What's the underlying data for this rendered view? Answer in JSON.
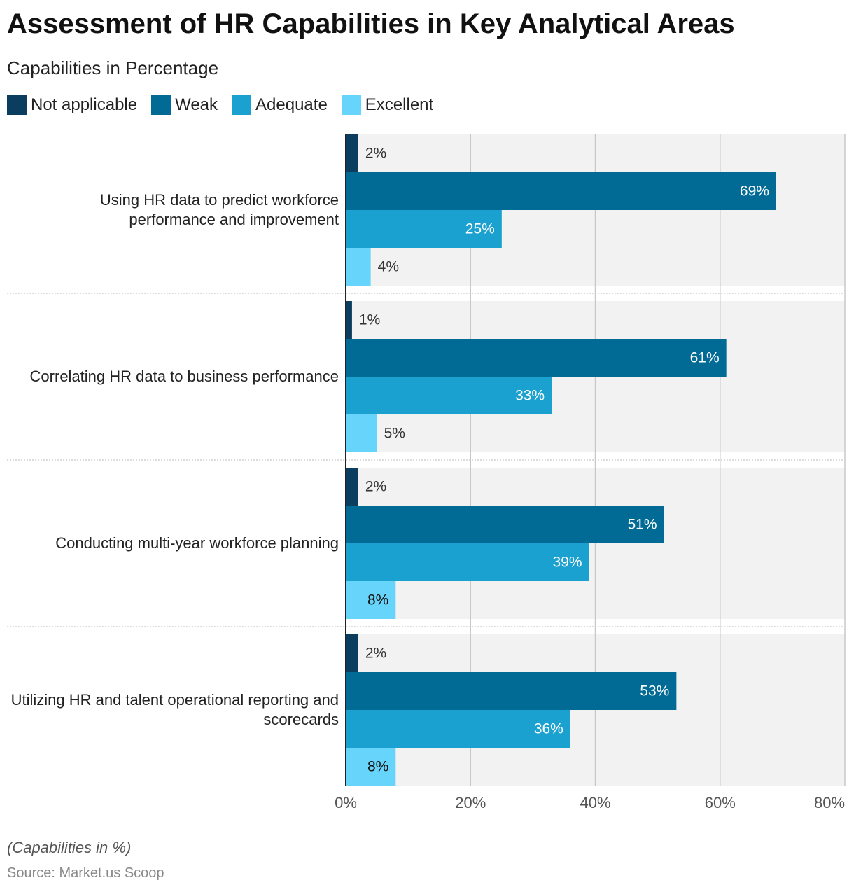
{
  "chart_data": {
    "type": "hbar",
    "title": "Assessment of HR Capabilities in Key Analytical Areas",
    "subtitle": "Capabilities in Percentage",
    "note": "(Capabilities in %)",
    "source": "Source: Market.us Scoop",
    "categories": [
      "Using HR data to predict workforce performance and improvement",
      "Correlating HR data to business performance",
      "Conducting multi-year workforce planning",
      "Utilizing HR and talent operational reporting and scorecards"
    ],
    "series": [
      {
        "name": "Not applicable",
        "color": "#0b3d5e",
        "values": [
          2,
          1,
          2,
          2
        ],
        "value_labels": [
          "2%",
          "1%",
          "2%",
          "2%"
        ]
      },
      {
        "name": "Weak",
        "color": "#016b96",
        "values": [
          69,
          61,
          51,
          53
        ],
        "value_labels": [
          "69%",
          "61%",
          "51%",
          "53%"
        ]
      },
      {
        "name": "Adequate",
        "color": "#1ba1cf",
        "values": [
          25,
          33,
          39,
          36
        ],
        "value_labels": [
          "25%",
          "33%",
          "39%",
          "36%"
        ]
      },
      {
        "name": "Excellent",
        "color": "#67d5fb",
        "values": [
          4,
          5,
          8,
          8
        ],
        "value_labels": [
          "4%",
          "5%",
          "8%",
          "8%"
        ]
      }
    ],
    "xlim": [
      0,
      80
    ],
    "xticks": [
      {
        "value": 0,
        "label": "0%"
      },
      {
        "value": 20,
        "label": "20%"
      },
      {
        "value": 40,
        "label": "40%"
      },
      {
        "value": 60,
        "label": "60%"
      },
      {
        "value": 80,
        "label": "80%"
      }
    ],
    "grid": true
  }
}
